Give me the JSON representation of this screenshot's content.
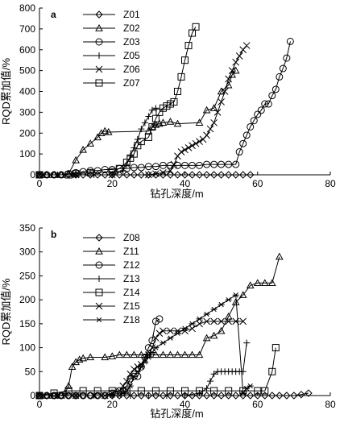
{
  "chart_data": [
    {
      "type": "line",
      "panel_label": "a",
      "xlabel": "钻孔深度/m",
      "ylabel": "RQD累加值/%",
      "xlim": [
        0,
        80
      ],
      "ylim": [
        0,
        800
      ],
      "xticks": [
        0,
        20,
        40,
        60,
        80
      ],
      "yticks": [
        0,
        100,
        200,
        300,
        400,
        500,
        600,
        700,
        800
      ],
      "legend_position": "top-left",
      "grid": false,
      "series": [
        {
          "name": "Z01",
          "marker": "diamond",
          "x": [
            0,
            2,
            4,
            6,
            8,
            10,
            12,
            14,
            16,
            18,
            20,
            22,
            24,
            26,
            28,
            30,
            32,
            34,
            36,
            38,
            40,
            42,
            44,
            46,
            48,
            50,
            52,
            54,
            56,
            58
          ],
          "y": [
            0,
            0,
            0,
            0,
            0,
            0,
            0,
            0,
            0,
            0,
            0,
            0,
            0,
            0,
            0,
            0,
            0,
            0,
            0,
            0,
            0,
            0,
            0,
            0,
            0,
            0,
            0,
            0,
            0,
            0
          ]
        },
        {
          "name": "Z02",
          "marker": "triangle",
          "x": [
            0,
            2,
            4,
            6,
            8,
            10,
            12,
            14,
            16,
            17,
            18,
            19,
            30,
            31,
            32,
            33,
            34,
            36,
            38,
            44,
            46,
            48,
            50,
            52,
            53,
            54
          ],
          "y": [
            0,
            0,
            0,
            0,
            5,
            70,
            120,
            150,
            180,
            200,
            210,
            205,
            210,
            230,
            240,
            245,
            250,
            255,
            245,
            250,
            310,
            320,
            400,
            430,
            480,
            500
          ]
        },
        {
          "name": "Z03",
          "marker": "circle",
          "x": [
            0,
            2,
            4,
            6,
            8,
            10,
            12,
            14,
            16,
            18,
            20,
            22,
            24,
            26,
            28,
            30,
            32,
            34,
            36,
            38,
            40,
            42,
            44,
            46,
            48,
            50,
            52,
            54,
            55,
            56,
            57,
            58,
            59,
            60,
            61,
            62,
            63,
            64,
            65,
            66,
            67,
            68,
            69
          ],
          "y": [
            0,
            0,
            0,
            0,
            5,
            10,
            15,
            20,
            20,
            25,
            25,
            30,
            30,
            35,
            35,
            40,
            40,
            45,
            45,
            45,
            45,
            45,
            45,
            50,
            50,
            50,
            50,
            50,
            110,
            150,
            190,
            230,
            260,
            290,
            310,
            340,
            340,
            380,
            410,
            470,
            510,
            560,
            640
          ]
        },
        {
          "name": "Z05",
          "marker": "plus",
          "x": [
            0,
            5,
            10,
            15,
            20,
            23,
            24,
            25,
            26,
            27,
            28,
            29,
            30,
            31,
            32
          ],
          "y": [
            0,
            0,
            0,
            0,
            0,
            20,
            50,
            90,
            130,
            170,
            220,
            250,
            280,
            310,
            320
          ]
        },
        {
          "name": "Z06",
          "marker": "cross",
          "x": [
            0,
            10,
            20,
            30,
            32,
            34,
            36,
            37,
            38,
            39,
            40,
            41,
            42,
            43,
            44,
            45,
            46,
            47,
            48,
            49,
            50,
            51,
            52,
            53,
            54,
            55,
            56,
            57
          ],
          "y": [
            0,
            0,
            0,
            0,
            5,
            10,
            20,
            50,
            90,
            110,
            120,
            130,
            140,
            150,
            160,
            170,
            190,
            220,
            250,
            300,
            350,
            400,
            460,
            500,
            540,
            570,
            600,
            620
          ]
        },
        {
          "name": "Z07",
          "marker": "square",
          "x": [
            0,
            8,
            10,
            14,
            20,
            22,
            24,
            25,
            26,
            27,
            28,
            30,
            31,
            32,
            33,
            34,
            35,
            36,
            37,
            38,
            39,
            40,
            41,
            42,
            43
          ],
          "y": [
            0,
            0,
            5,
            10,
            15,
            30,
            60,
            80,
            100,
            140,
            160,
            180,
            230,
            270,
            300,
            320,
            330,
            340,
            350,
            400,
            470,
            550,
            620,
            680,
            710
          ]
        }
      ]
    },
    {
      "type": "line",
      "panel_label": "b",
      "xlabel": "钻孔深度/m",
      "ylabel": "RQD累加值/%",
      "xlim": [
        0,
        80
      ],
      "ylim": [
        0,
        350
      ],
      "xticks": [
        0,
        20,
        40,
        60,
        80
      ],
      "yticks": [
        0,
        50,
        100,
        150,
        200,
        250,
        300,
        350
      ],
      "legend_position": "top-left",
      "grid": false,
      "series": [
        {
          "name": "Z08",
          "marker": "diamond",
          "x": [
            0,
            2,
            4,
            6,
            8,
            10,
            12,
            14,
            16,
            18,
            20,
            22,
            24,
            26,
            28,
            30,
            32,
            34,
            36,
            38,
            40,
            42,
            44,
            46,
            48,
            50,
            52,
            54,
            56,
            58,
            60,
            62,
            64,
            66,
            68,
            70,
            72,
            74
          ],
          "y": [
            0,
            0,
            0,
            0,
            0,
            0,
            0,
            0,
            0,
            0,
            0,
            0,
            0,
            0,
            0,
            0,
            0,
            0,
            0,
            0,
            0,
            0,
            0,
            0,
            0,
            0,
            0,
            0,
            0,
            0,
            0,
            0,
            0,
            0,
            0,
            0,
            2,
            5
          ]
        },
        {
          "name": "Z11",
          "marker": "triangle",
          "x": [
            0,
            2,
            4,
            6,
            7,
            8,
            9,
            10,
            11,
            12,
            14,
            18,
            20,
            22,
            24,
            26,
            28,
            30,
            32,
            34,
            36,
            38,
            40,
            42,
            44,
            46,
            48,
            50,
            52,
            54,
            56,
            58,
            60,
            62,
            64,
            66
          ],
          "y": [
            0,
            0,
            0,
            0,
            5,
            20,
            60,
            70,
            75,
            78,
            80,
            80,
            82,
            85,
            85,
            85,
            85,
            85,
            85,
            85,
            85,
            85,
            85,
            85,
            85,
            120,
            125,
            135,
            165,
            195,
            210,
            230,
            235,
            235,
            235,
            290
          ]
        },
        {
          "name": "Z12",
          "marker": "circle",
          "x": [
            0,
            2,
            4,
            6,
            8,
            10,
            12,
            14,
            16,
            18,
            20,
            22,
            24,
            25,
            26,
            27,
            28,
            29,
            30,
            31,
            32,
            33
          ],
          "y": [
            0,
            0,
            0,
            0,
            0,
            0,
            0,
            0,
            0,
            0,
            5,
            10,
            20,
            35,
            40,
            40,
            60,
            80,
            100,
            115,
            155,
            160
          ]
        },
        {
          "name": "Z13",
          "marker": "plus",
          "x": [
            0,
            5,
            10,
            15,
            20,
            25,
            30,
            35,
            40,
            44,
            46,
            47,
            48,
            49,
            50,
            51,
            52,
            53,
            54,
            55,
            56,
            57
          ],
          "y": [
            0,
            0,
            0,
            0,
            0,
            0,
            0,
            0,
            0,
            5,
            15,
            30,
            45,
            50,
            50,
            50,
            50,
            50,
            50,
            50,
            50,
            110
          ]
        },
        {
          "name": "Z14",
          "marker": "square",
          "x": [
            0,
            4,
            8,
            12,
            16,
            20,
            24,
            28,
            32,
            36,
            40,
            44,
            48,
            52,
            56,
            60,
            62,
            64,
            65
          ],
          "y": [
            0,
            5,
            10,
            10,
            10,
            10,
            10,
            10,
            10,
            10,
            10,
            10,
            10,
            10,
            10,
            10,
            10,
            50,
            100
          ]
        },
        {
          "name": "Z15",
          "marker": "cross",
          "x": [
            0,
            5,
            10,
            15,
            18,
            20,
            22,
            23,
            24,
            25,
            26,
            27,
            28,
            29,
            30,
            31,
            32,
            33,
            34,
            36,
            38,
            40,
            42,
            44,
            46,
            48,
            50,
            52,
            54,
            56
          ],
          "y": [
            0,
            0,
            0,
            0,
            0,
            5,
            10,
            20,
            30,
            45,
            55,
            60,
            65,
            75,
            85,
            100,
            120,
            130,
            135,
            135,
            135,
            135,
            140,
            150,
            155,
            155,
            155,
            155,
            155,
            155
          ]
        },
        {
          "name": "Z18",
          "marker": "star",
          "x": [
            0,
            5,
            10,
            15,
            20,
            22,
            23,
            24,
            25,
            26,
            27,
            28,
            29,
            30,
            31,
            32,
            34,
            36,
            38,
            40,
            42,
            44,
            46,
            48,
            50,
            52,
            54,
            56,
            57,
            58
          ],
          "y": [
            0,
            0,
            0,
            0,
            0,
            0,
            5,
            10,
            20,
            40,
            50,
            60,
            70,
            80,
            90,
            100,
            110,
            120,
            130,
            140,
            150,
            160,
            170,
            180,
            190,
            200,
            210,
            5,
            15,
            20
          ]
        }
      ]
    }
  ]
}
